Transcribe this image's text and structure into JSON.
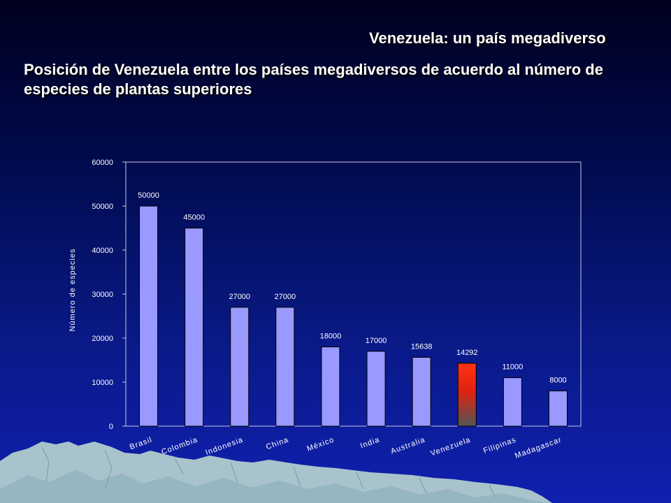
{
  "slide": {
    "title": "Venezuela:  un país megadiverso",
    "subtitle": "Posición de Venezuela entre los países megadiversos de acuerdo al número de especies de plantas superiores"
  },
  "chart_data": {
    "type": "bar",
    "categories": [
      "Brasil",
      "Colombia",
      "Indonesia",
      "China",
      "México",
      "India",
      "Australia",
      "Venezuela",
      "Filipinas",
      "Madagascar"
    ],
    "values": [
      50000,
      45000,
      27000,
      27000,
      18000,
      17000,
      15638,
      14292,
      11000,
      8000
    ],
    "ylabel": "Número de especies",
    "xlabel": "",
    "ylim": [
      0,
      60000
    ],
    "yticks": [
      0,
      10000,
      20000,
      30000,
      40000,
      50000,
      60000
    ],
    "grid": false,
    "bar_color": "#9999ff",
    "highlight": {
      "category": "Venezuela",
      "color_top": "#ff3311",
      "color_bottom": "#555555"
    }
  }
}
